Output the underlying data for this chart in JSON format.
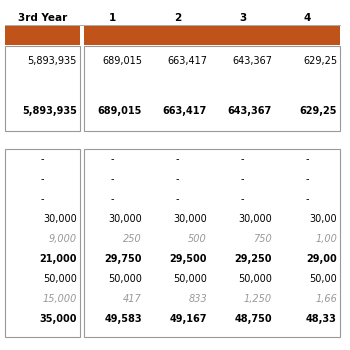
{
  "bg_color": "#ffffff",
  "orange_color": "#C0531A",
  "header_row": [
    "3rd Year",
    "1",
    "2",
    "3",
    "4"
  ],
  "col_widths": [
    1.6,
    1.0,
    1.0,
    1.0,
    1.0
  ],
  "section1": {
    "rows": [
      [
        "5,893,935",
        "689,015",
        "663,417",
        "643,367",
        "629,25"
      ],
      [
        "",
        "",
        "",
        "",
        ""
      ],
      [
        "5,893,935",
        "689,015",
        "663,417",
        "643,367",
        "629,25"
      ]
    ],
    "bold_rows": [
      2
    ]
  },
  "section2": {
    "rows": [
      [
        "-",
        "-",
        "-",
        "-",
        "-"
      ],
      [
        "-",
        "-",
        "-",
        "-",
        "-"
      ],
      [
        "-",
        "-",
        "-",
        "-",
        "-"
      ],
      [
        "30,000",
        "30,000",
        "30,000",
        "30,000",
        "30,00"
      ],
      [
        "9,000",
        "250",
        "500",
        "750",
        "1,00"
      ],
      [
        "21,000",
        "29,750",
        "29,500",
        "29,250",
        "29,00"
      ],
      [
        "50,000",
        "50,000",
        "50,000",
        "50,000",
        "50,00"
      ],
      [
        "15,000",
        "417",
        "833",
        "1,250",
        "1,66"
      ],
      [
        "35,000",
        "49,583",
        "49,167",
        "48,750",
        "48,33"
      ]
    ],
    "bold_rows": [
      5,
      8
    ],
    "italic_rows": [
      4,
      7
    ]
  },
  "font_size_header": 7.5,
  "font_size_data": 7.0,
  "font_size_dash": 7.0,
  "line_color": "#aaaaaa",
  "border_color": "#999999"
}
